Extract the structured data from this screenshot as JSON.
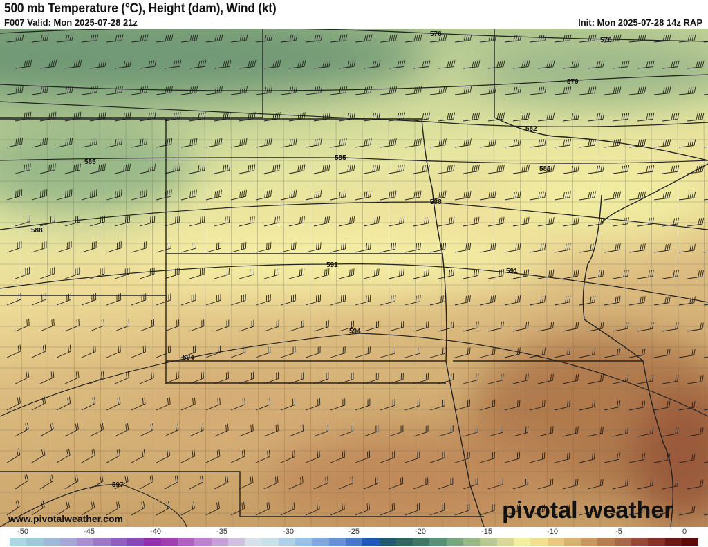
{
  "header": {
    "title": "500 mb Temperature (°C), Height (dam), Wind (kt)",
    "valid": "F007 Valid: Mon 2025-07-28 21z",
    "init": "Init: Mon 2025-07-28 14z RAP"
  },
  "map": {
    "contour_labels": [
      "576",
      "576",
      "579",
      "582",
      "585",
      "585",
      "585",
      "588",
      "588",
      "591",
      "591",
      "594",
      "594",
      "597"
    ]
  },
  "footer": {
    "website": "www.pivotalweather.com",
    "logo": "pivotal weather"
  },
  "colorbar": {
    "tick_labels": [
      "-50",
      "-45",
      "-40",
      "-35",
      "-30",
      "-25",
      "-20",
      "-15",
      "-10",
      "-5",
      "0"
    ],
    "colors": [
      "#a8d8e0",
      "#9ccad8",
      "#a0b8d8",
      "#a8a8d8",
      "#a890d0",
      "#a078c8",
      "#9060c0",
      "#8848b8",
      "#9030b0",
      "#a040b0",
      "#b060c0",
      "#c080d0",
      "#c8a0d8",
      "#d0c0e0",
      "#d8e0e8",
      "#c8e0e8",
      "#b0d0e8",
      "#98c0e8",
      "#80a8e0",
      "#6890d8",
      "#4878c8",
      "#2058b8",
      "#205870",
      "#306860",
      "#407868",
      "#589078",
      "#78a880",
      "#98b888",
      "#b8c890",
      "#d8d898",
      "#f0f0a0",
      "#f0e090",
      "#e8c880",
      "#d8b070",
      "#c89860",
      "#b88050",
      "#a86848",
      "#984838",
      "#883028",
      "#701818",
      "#600808"
    ]
  }
}
